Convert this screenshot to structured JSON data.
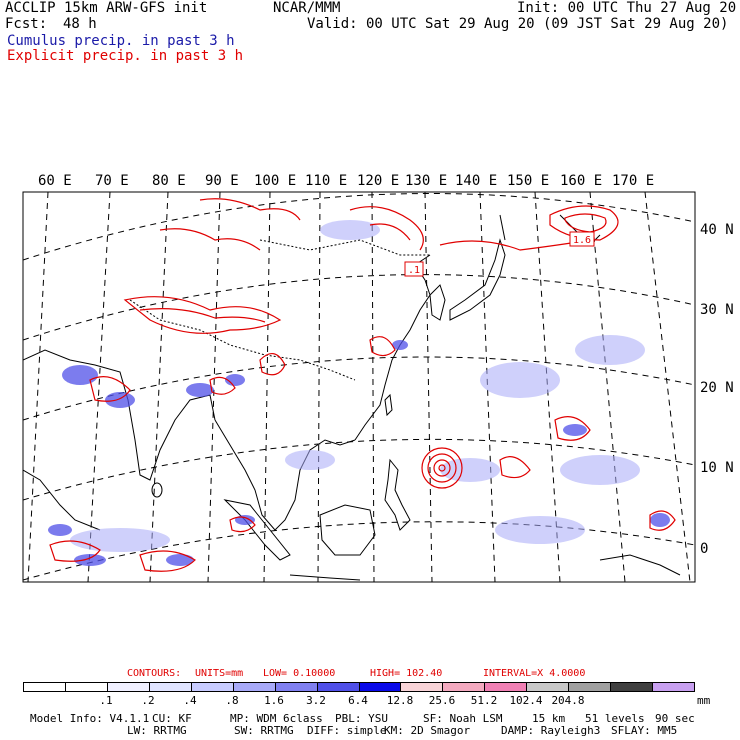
{
  "header": {
    "model": "ACCLIP 15km ARW-GFS init",
    "org": "NCAR/MMM",
    "init": "Init: 00 UTC Thu 27 Aug 20",
    "fcst_label": "Fcst:",
    "fcst_value": "48 h",
    "valid": "Valid: 00 UTC Sat 29 Aug 20 (09 JST Sat 29 Aug 20)",
    "cumulus": "Cumulus precip. in past 3 h",
    "explicit": "Explicit precip. in past 3 h"
  },
  "map": {
    "lon_labels": [
      "60 E",
      "70 E",
      "80 E",
      "90 E",
      "100 E",
      "110 E",
      "120 E",
      "130 E",
      "140 E",
      "150 E",
      "160 E",
      "170 E"
    ],
    "lat_labels": [
      "40 N",
      "30 N",
      "20 N",
      "10 N",
      "0"
    ],
    "contour_tag_1": ".1",
    "contour_tag_2": "1.6"
  },
  "contour_info": {
    "contours": "CONTOURS:",
    "units": "UNITS=mm",
    "low": "LOW= 0.10000",
    "high": "HIGH= 102.40",
    "interval": "INTERVAL=X 4.0000"
  },
  "colorbar": {
    "colors": [
      "#ffffff",
      "#ffffff",
      "#f0f0ff",
      "#e0e4ff",
      "#c8ccff",
      "#a8aaf8",
      "#8080f0",
      "#5050e8",
      "#0a0ae8",
      "#f8d4d8",
      "#f4aac0",
      "#f080b4",
      "#c8c8c8",
      "#a0a0a0",
      "#404040",
      "#c8a0f0"
    ],
    "labels": [
      ".1",
      ".2",
      ".4",
      ".8",
      "1.6",
      "3.2",
      "6.4",
      "12.8",
      "25.6",
      "51.2",
      "102.4",
      "204.8"
    ],
    "unit": "mm"
  },
  "footer": {
    "line1": [
      "Model Info: V4.1.1",
      "CU: KF",
      "MP: WDM 6class",
      "PBL: YSU",
      "SF: Noah LSM",
      "15 km",
      "51 levels",
      "90 sec"
    ],
    "line2": [
      "LW: RRTMG",
      "SW: RRTMG",
      "DIFF: simple",
      "KM: 2D Smagor",
      "DAMP: Rayleigh3",
      "SFLAY: MM5"
    ]
  }
}
